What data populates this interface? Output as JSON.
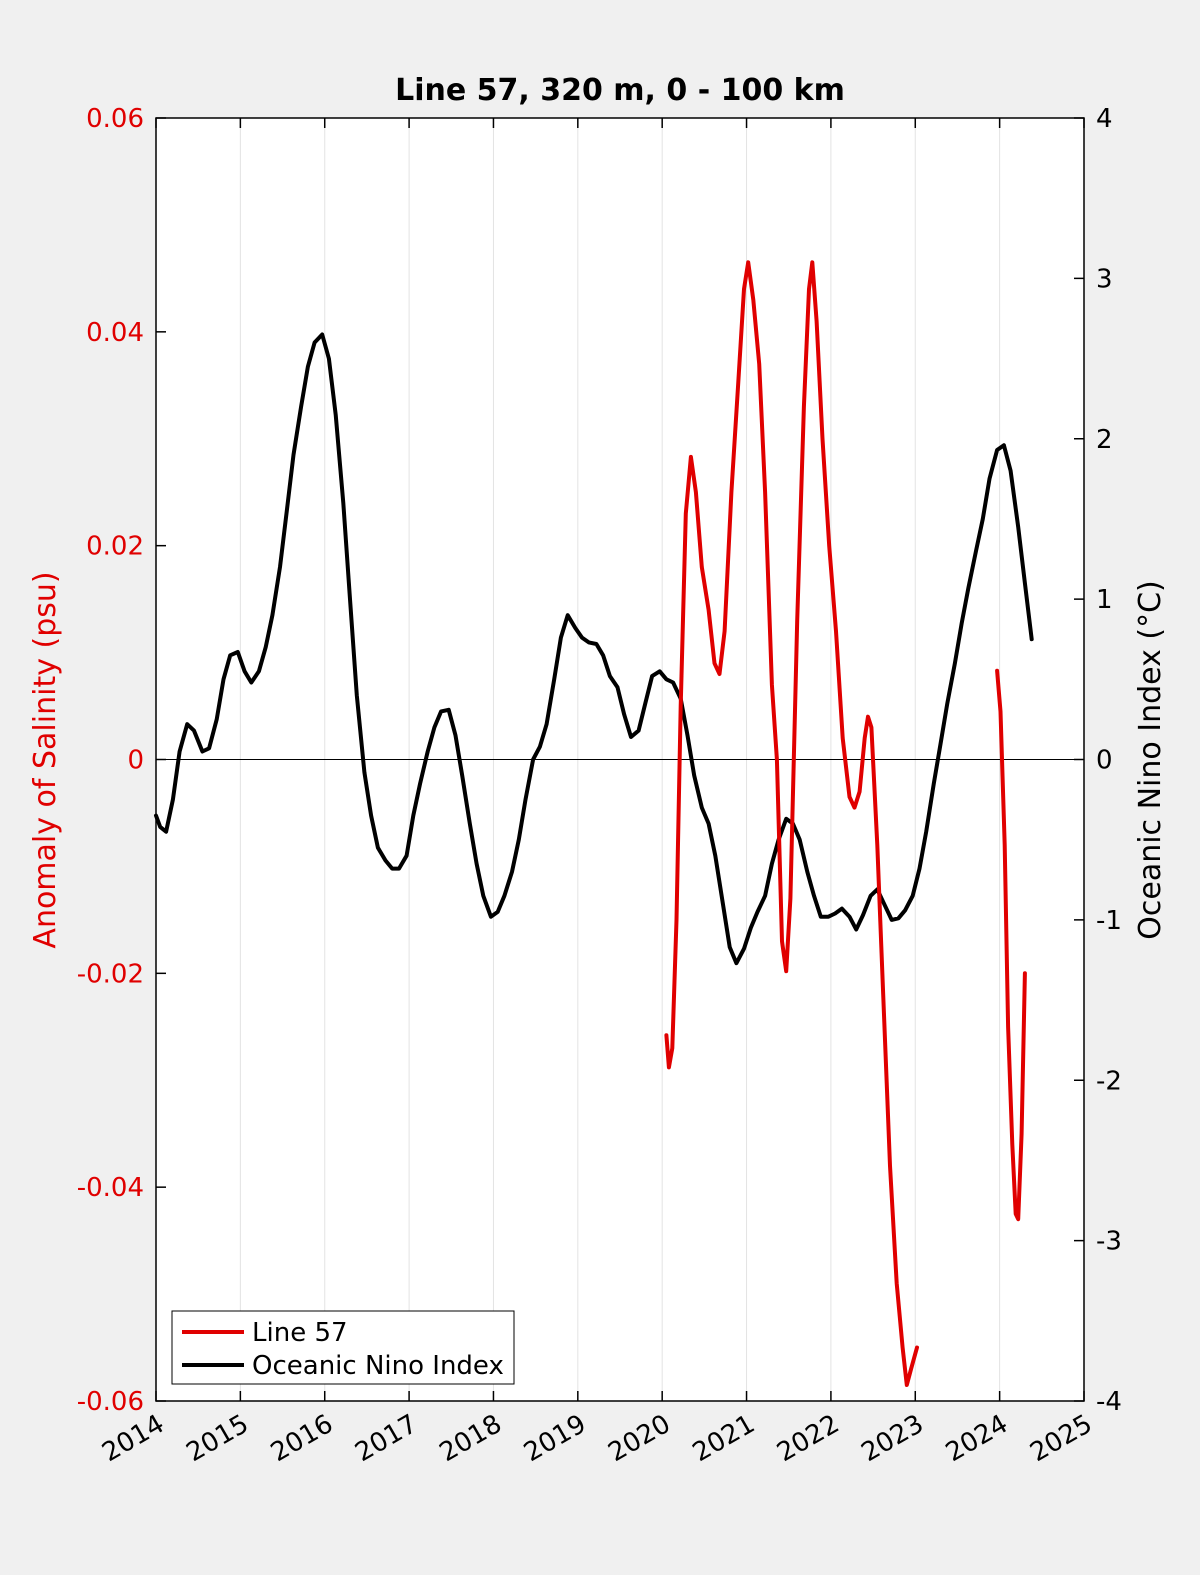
{
  "chart_data": {
    "type": "line",
    "title": "Line 57, 320 m, 0 - 100 km",
    "ylabel_left": "Anomaly of Salinity (psu)",
    "ylabel_right": "Oceanic Nino Index (°C)",
    "xlim": [
      2014,
      2025
    ],
    "ylim_left": [
      -0.06,
      0.06
    ],
    "ylim_right": [
      -4,
      4
    ],
    "x_ticks": [
      "2014",
      "2015",
      "2016",
      "2017",
      "2018",
      "2019",
      "2020",
      "2021",
      "2022",
      "2023",
      "2024",
      "2025"
    ],
    "y_ticks_left": [
      "0.06",
      "0.04",
      "0.02",
      "0",
      "-0.02",
      "-0.04",
      "-0.06"
    ],
    "y_ticks_right": [
      "4",
      "3",
      "2",
      "1",
      "0",
      "-1",
      "-2",
      "-3",
      "-4"
    ],
    "grid": "vertical",
    "legend_position": "bottom-left",
    "colors": {
      "line57": "#e00000",
      "oni": "#000000"
    },
    "series": [
      {
        "name": "Line 57",
        "axis": "left",
        "segments": [
          [
            [
              2020.05,
              -0.0258
            ],
            [
              2020.08,
              -0.0288
            ],
            [
              2020.12,
              -0.027
            ],
            [
              2020.17,
              -0.015
            ],
            [
              2020.22,
              0.005
            ],
            [
              2020.28,
              0.023
            ],
            [
              2020.34,
              0.0283
            ],
            [
              2020.4,
              0.025
            ],
            [
              2020.47,
              0.018
            ],
            [
              2020.55,
              0.014
            ],
            [
              2020.62,
              0.009
            ],
            [
              2020.68,
              0.008
            ],
            [
              2020.74,
              0.012
            ],
            [
              2020.82,
              0.025
            ],
            [
              2020.9,
              0.035
            ],
            [
              2020.97,
              0.044
            ],
            [
              2021.02,
              0.0465
            ],
            [
              2021.08,
              0.043
            ],
            [
              2021.15,
              0.037
            ],
            [
              2021.22,
              0.025
            ],
            [
              2021.3,
              0.007
            ],
            [
              2021.36,
              0.0
            ],
            [
              2021.42,
              -0.017
            ],
            [
              2021.47,
              -0.0198
            ],
            [
              2021.52,
              -0.013
            ],
            [
              2021.6,
              0.013
            ],
            [
              2021.68,
              0.033
            ],
            [
              2021.74,
              0.044
            ],
            [
              2021.78,
              0.0465
            ],
            [
              2021.83,
              0.041
            ],
            [
              2021.9,
              0.03
            ],
            [
              2021.98,
              0.02
            ],
            [
              2022.06,
              0.012
            ],
            [
              2022.14,
              0.002
            ],
            [
              2022.22,
              -0.0035
            ],
            [
              2022.28,
              -0.0045
            ],
            [
              2022.34,
              -0.003
            ],
            [
              2022.4,
              0.002
            ],
            [
              2022.44,
              0.004
            ],
            [
              2022.48,
              0.003
            ],
            [
              2022.55,
              -0.008
            ],
            [
              2022.62,
              -0.022
            ],
            [
              2022.7,
              -0.038
            ],
            [
              2022.78,
              -0.049
            ],
            [
              2022.85,
              -0.055
            ],
            [
              2022.9,
              -0.0585
            ],
            [
              2022.95,
              -0.057
            ],
            [
              2023.02,
              -0.055
            ]
          ],
          [
            [
              2023.97,
              0.0083
            ],
            [
              2024.01,
              0.0045
            ],
            [
              2024.06,
              -0.008
            ],
            [
              2024.1,
              -0.025
            ],
            [
              2024.15,
              -0.036
            ],
            [
              2024.19,
              -0.0425
            ],
            [
              2024.22,
              -0.043
            ],
            [
              2024.26,
              -0.035
            ],
            [
              2024.3,
              -0.02
            ]
          ]
        ]
      },
      {
        "name": "Oceanic Nino Index",
        "axis": "right",
        "segments": [
          [
            [
              2014.0,
              -0.35
            ],
            [
              2014.05,
              -0.42
            ],
            [
              2014.12,
              -0.45
            ],
            [
              2014.2,
              -0.25
            ],
            [
              2014.28,
              0.05
            ],
            [
              2014.37,
              0.22
            ],
            [
              2014.45,
              0.18
            ],
            [
              2014.55,
              0.05
            ],
            [
              2014.63,
              0.07
            ],
            [
              2014.72,
              0.25
            ],
            [
              2014.8,
              0.5
            ],
            [
              2014.88,
              0.65
            ],
            [
              2014.97,
              0.67
            ],
            [
              2015.05,
              0.55
            ],
            [
              2015.13,
              0.48
            ],
            [
              2015.22,
              0.55
            ],
            [
              2015.3,
              0.7
            ],
            [
              2015.38,
              0.9
            ],
            [
              2015.47,
              1.2
            ],
            [
              2015.55,
              1.55
            ],
            [
              2015.63,
              1.9
            ],
            [
              2015.72,
              2.2
            ],
            [
              2015.8,
              2.45
            ],
            [
              2015.88,
              2.6
            ],
            [
              2015.97,
              2.65
            ],
            [
              2016.05,
              2.5
            ],
            [
              2016.13,
              2.15
            ],
            [
              2016.22,
              1.6
            ],
            [
              2016.3,
              1.0
            ],
            [
              2016.38,
              0.4
            ],
            [
              2016.47,
              -0.08
            ],
            [
              2016.55,
              -0.35
            ],
            [
              2016.63,
              -0.55
            ],
            [
              2016.72,
              -0.63
            ],
            [
              2016.8,
              -0.68
            ],
            [
              2016.88,
              -0.68
            ],
            [
              2016.97,
              -0.6
            ],
            [
              2017.05,
              -0.35
            ],
            [
              2017.13,
              -0.15
            ],
            [
              2017.22,
              0.05
            ],
            [
              2017.3,
              0.2
            ],
            [
              2017.38,
              0.3
            ],
            [
              2017.47,
              0.31
            ],
            [
              2017.55,
              0.15
            ],
            [
              2017.63,
              -0.1
            ],
            [
              2017.72,
              -0.4
            ],
            [
              2017.8,
              -0.65
            ],
            [
              2017.88,
              -0.85
            ],
            [
              2017.97,
              -0.98
            ],
            [
              2018.05,
              -0.95
            ],
            [
              2018.13,
              -0.85
            ],
            [
              2018.22,
              -0.7
            ],
            [
              2018.3,
              -0.5
            ],
            [
              2018.38,
              -0.25
            ],
            [
              2018.47,
              0.0
            ],
            [
              2018.55,
              0.08
            ],
            [
              2018.63,
              0.22
            ],
            [
              2018.72,
              0.5
            ],
            [
              2018.8,
              0.76
            ],
            [
              2018.88,
              0.9
            ],
            [
              2018.97,
              0.82
            ],
            [
              2019.05,
              0.76
            ],
            [
              2019.13,
              0.73
            ],
            [
              2019.22,
              0.72
            ],
            [
              2019.3,
              0.65
            ],
            [
              2019.38,
              0.52
            ],
            [
              2019.47,
              0.45
            ],
            [
              2019.55,
              0.28
            ],
            [
              2019.63,
              0.14
            ],
            [
              2019.72,
              0.18
            ],
            [
              2019.8,
              0.35
            ],
            [
              2019.88,
              0.52
            ],
            [
              2019.97,
              0.55
            ],
            [
              2020.05,
              0.5
            ],
            [
              2020.13,
              0.48
            ],
            [
              2020.22,
              0.38
            ],
            [
              2020.3,
              0.15
            ],
            [
              2020.38,
              -0.1
            ],
            [
              2020.47,
              -0.3
            ],
            [
              2020.55,
              -0.4
            ],
            [
              2020.63,
              -0.6
            ],
            [
              2020.72,
              -0.9
            ],
            [
              2020.8,
              -1.17
            ],
            [
              2020.88,
              -1.27
            ],
            [
              2020.97,
              -1.18
            ],
            [
              2021.05,
              -1.05
            ],
            [
              2021.13,
              -0.95
            ],
            [
              2021.22,
              -0.85
            ],
            [
              2021.3,
              -0.65
            ],
            [
              2021.38,
              -0.5
            ],
            [
              2021.47,
              -0.37
            ],
            [
              2021.55,
              -0.4
            ],
            [
              2021.63,
              -0.5
            ],
            [
              2021.72,
              -0.7
            ],
            [
              2021.8,
              -0.85
            ],
            [
              2021.88,
              -0.98
            ],
            [
              2021.97,
              -0.98
            ],
            [
              2022.05,
              -0.96
            ],
            [
              2022.13,
              -0.93
            ],
            [
              2022.22,
              -0.98
            ],
            [
              2022.3,
              -1.06
            ],
            [
              2022.38,
              -0.97
            ],
            [
              2022.47,
              -0.85
            ],
            [
              2022.55,
              -0.81
            ],
            [
              2022.63,
              -0.9
            ],
            [
              2022.72,
              -1.0
            ],
            [
              2022.8,
              -0.99
            ],
            [
              2022.88,
              -0.94
            ],
            [
              2022.97,
              -0.85
            ],
            [
              2023.05,
              -0.68
            ],
            [
              2023.13,
              -0.45
            ],
            [
              2023.22,
              -0.15
            ],
            [
              2023.3,
              0.1
            ],
            [
              2023.38,
              0.35
            ],
            [
              2023.47,
              0.6
            ],
            [
              2023.55,
              0.85
            ],
            [
              2023.63,
              1.07
            ],
            [
              2023.72,
              1.3
            ],
            [
              2023.8,
              1.5
            ],
            [
              2023.88,
              1.75
            ],
            [
              2023.97,
              1.93
            ],
            [
              2024.05,
              1.96
            ],
            [
              2024.13,
              1.8
            ],
            [
              2024.22,
              1.45
            ],
            [
              2024.3,
              1.1
            ],
            [
              2024.38,
              0.75
            ]
          ]
        ]
      }
    ]
  }
}
